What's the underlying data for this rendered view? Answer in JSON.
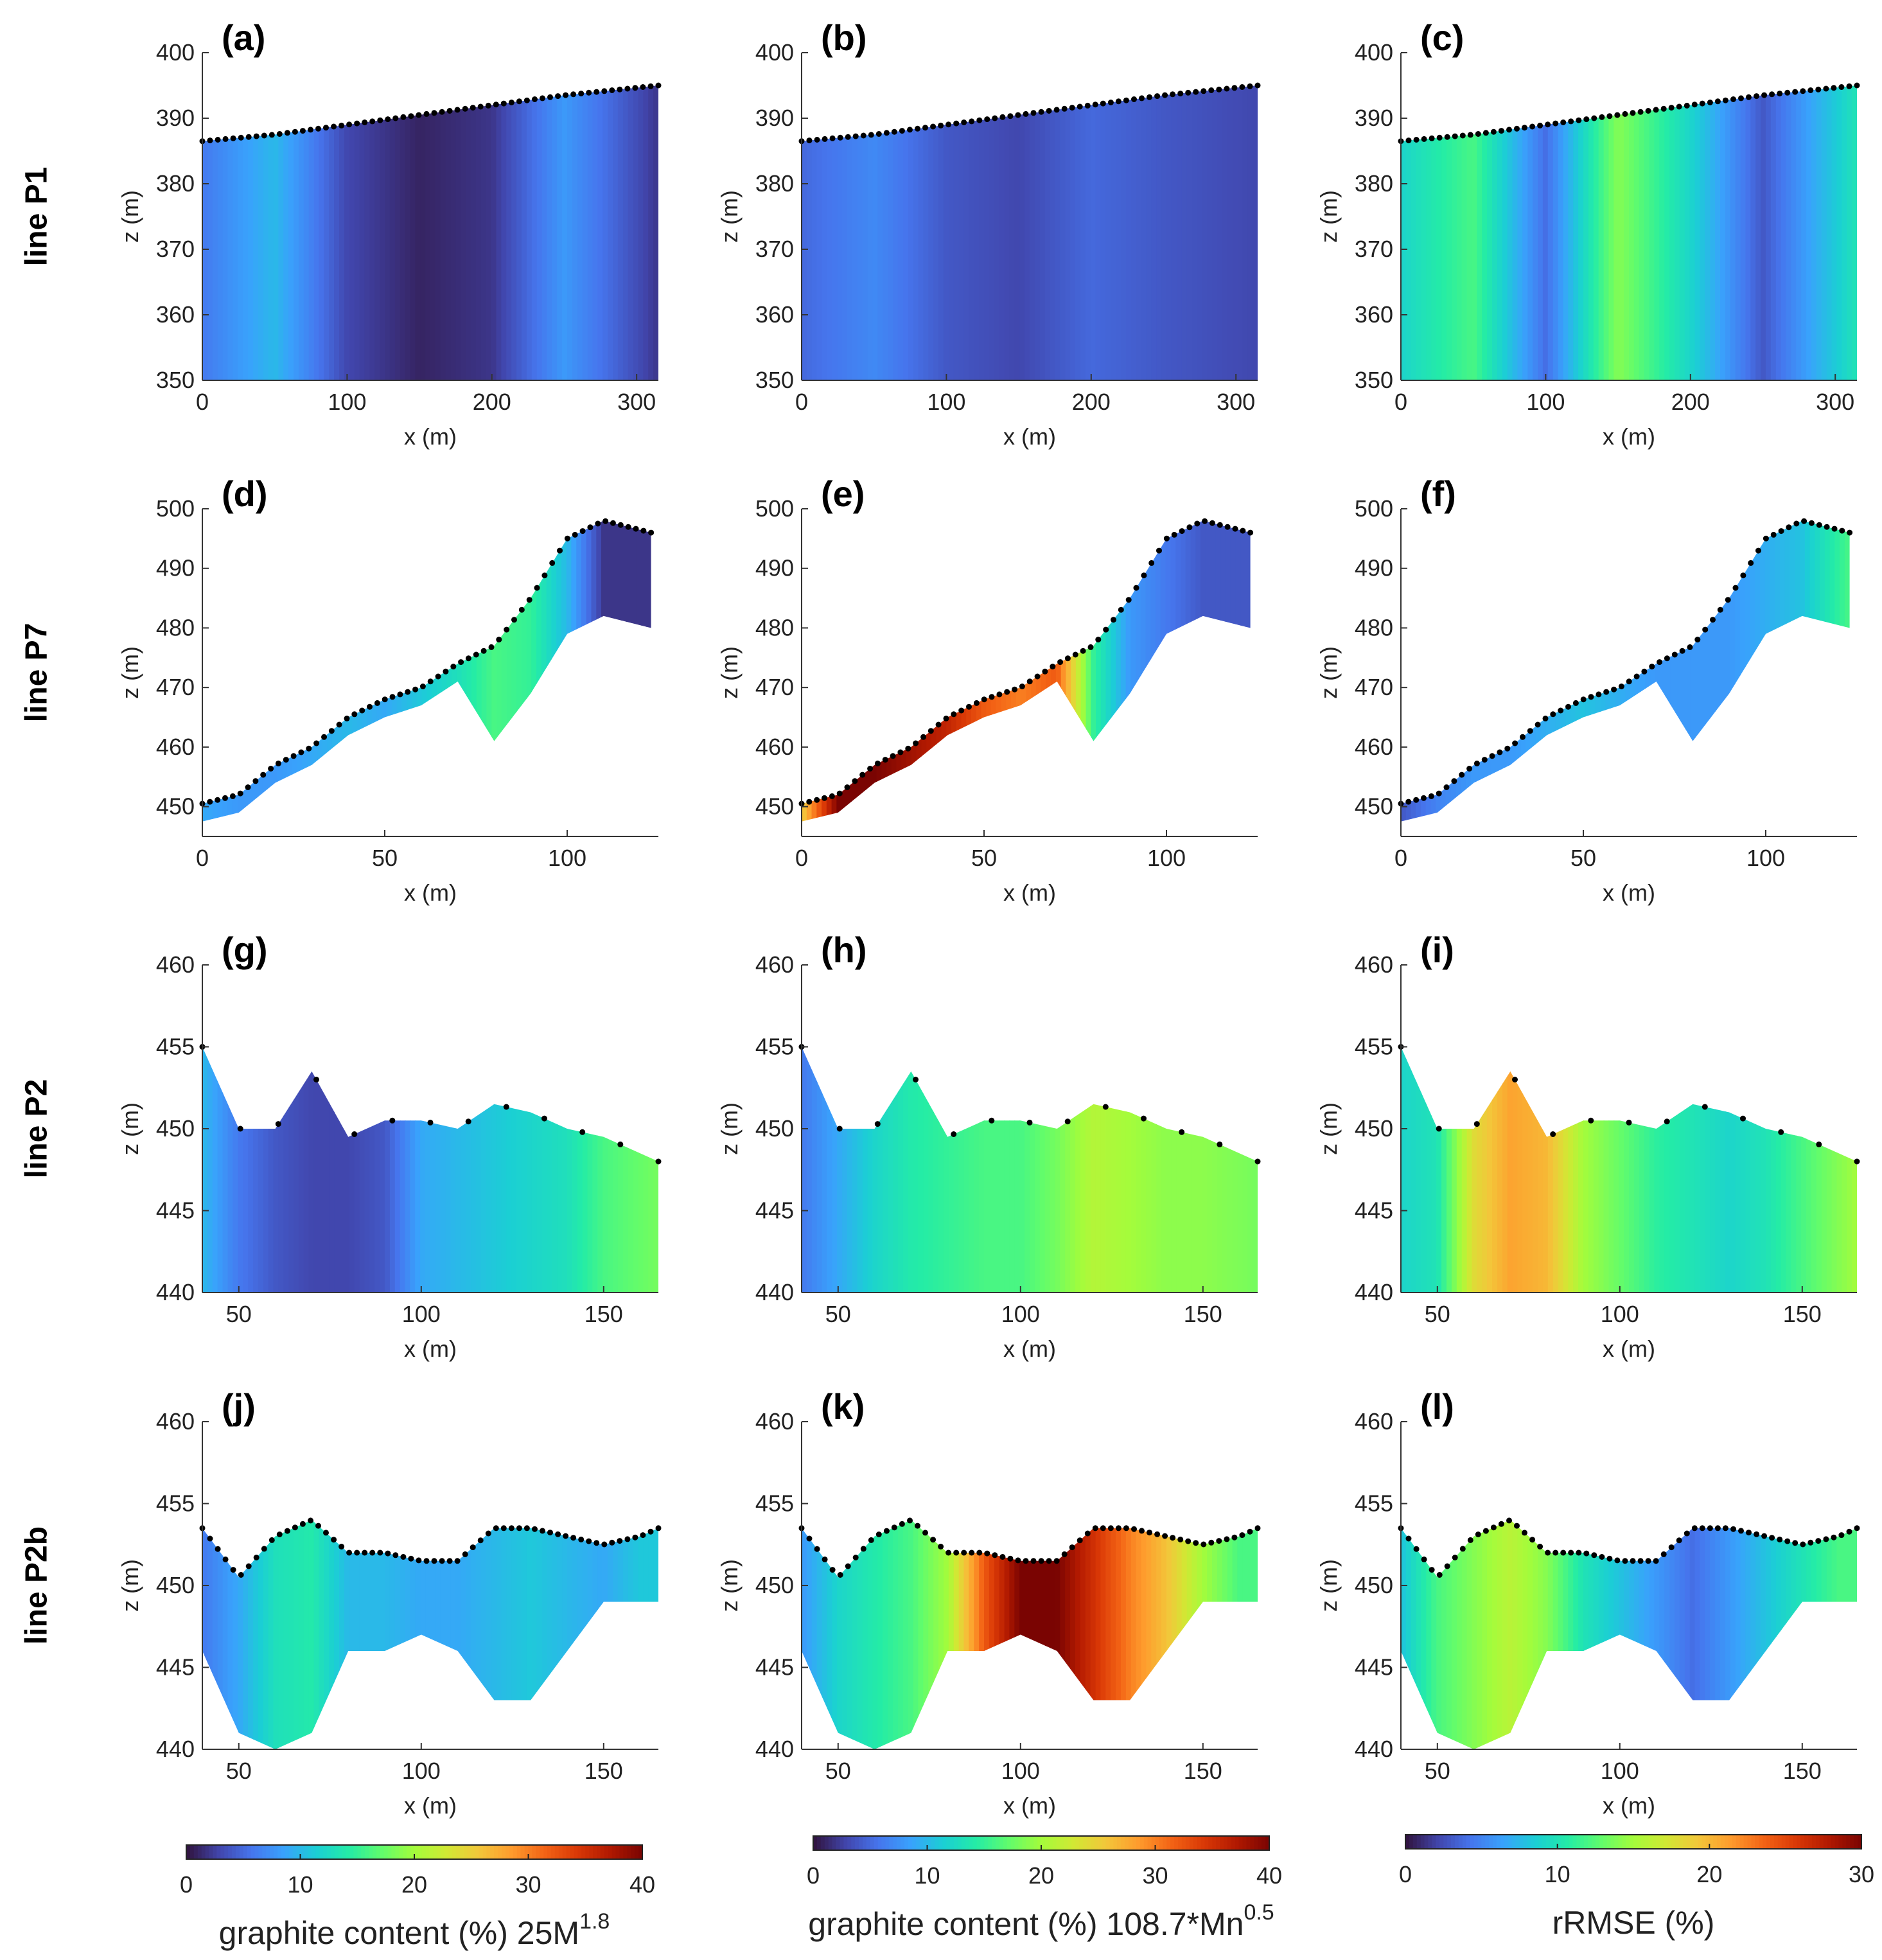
{
  "figure": {
    "rows": [
      {
        "label": "line P1",
        "panels": [
          "(a)",
          "(b)",
          "(c)"
        ],
        "xlabel": "x (m)",
        "ylabel": "z (m)",
        "xticks": [
          0,
          100,
          200,
          300
        ],
        "yticks": [
          350,
          360,
          370,
          380,
          390,
          400
        ],
        "xlim": [
          0,
          315
        ],
        "ylim": [
          350,
          400
        ]
      },
      {
        "label": "line P7",
        "panels": [
          "(d)",
          "(e)",
          "(f)"
        ],
        "xlabel": "x (m)",
        "ylabel": "z (m)",
        "xticks": [
          0,
          50,
          100
        ],
        "yticks": [
          450,
          460,
          470,
          480,
          490,
          500
        ],
        "xlim": [
          0,
          125
        ],
        "ylim": [
          445,
          500
        ]
      },
      {
        "label": "line P2",
        "panels": [
          "(g)",
          "(h)",
          "(i)"
        ],
        "xlabel": "x (m)",
        "ylabel": "z (m)",
        "xticks": [
          50,
          100,
          150
        ],
        "yticks": [
          440,
          445,
          450,
          455,
          460
        ],
        "xlim": [
          40,
          165
        ],
        "ylim": [
          440,
          460
        ]
      },
      {
        "label": "line P2b",
        "panels": [
          "(j)",
          "(k)",
          "(l)"
        ],
        "xlabel": "x (m)",
        "ylabel": "z (m)",
        "xticks": [
          50,
          100,
          150
        ],
        "yticks": [
          440,
          445,
          450,
          455,
          460
        ],
        "xlim": [
          40,
          165
        ],
        "ylim": [
          440,
          460
        ]
      }
    ],
    "colorbars": [
      {
        "ticks": [
          "0",
          "10",
          "20",
          "30",
          "40"
        ],
        "range": [
          0,
          40
        ],
        "label": "graphite content (%) 25M",
        "sup": "1.8"
      },
      {
        "ticks": [
          "0",
          "10",
          "20",
          "30",
          "40"
        ],
        "range": [
          0,
          40
        ],
        "label": "graphite content (%) 108.7*Mn",
        "sup": "0.5"
      },
      {
        "ticks": [
          "0",
          "10",
          "20",
          "30"
        ],
        "range": [
          0,
          30
        ],
        "label": "rRMSE (%)",
        "sup": ""
      }
    ],
    "colors": {
      "colormap": [
        "#30123b",
        "#4145ab",
        "#4675ed",
        "#39a2fc",
        "#1bcfd4",
        "#24eca6",
        "#61fc6c",
        "#a4fc3b",
        "#d1e834",
        "#f3c63a",
        "#fe9b2d",
        "#f36315",
        "#d93806",
        "#b11901",
        "#7a0402"
      ]
    }
  },
  "chart_data": [
    {
      "type": "heatmap",
      "panel": "(a)",
      "line": "line P1",
      "x": [
        0,
        50,
        100,
        150,
        200,
        250,
        315
      ],
      "surface_z": [
        386.5,
        387.5,
        389,
        390.5,
        392,
        393.5,
        395
      ],
      "values": [
        6,
        10,
        3,
        1,
        2,
        8,
        2
      ],
      "unit": "graphite content (%)"
    },
    {
      "type": "heatmap",
      "panel": "(b)",
      "line": "line P1",
      "x": [
        0,
        50,
        100,
        150,
        200,
        250,
        315
      ],
      "surface_z": [
        386.5,
        387.5,
        389,
        390.5,
        392,
        393.5,
        395
      ],
      "values": [
        5,
        7,
        4,
        3,
        5,
        4,
        3
      ],
      "unit": "graphite content (%)"
    },
    {
      "type": "heatmap",
      "panel": "(c)",
      "line": "line P1",
      "x": [
        0,
        50,
        100,
        150,
        200,
        250,
        315
      ],
      "surface_z": [
        386.5,
        387.5,
        389,
        390.5,
        392,
        393.5,
        395
      ],
      "values": [
        9,
        12,
        4,
        14,
        9,
        3,
        10
      ],
      "unit": "rRMSE (%)"
    },
    {
      "type": "heatmap",
      "panel": "(d)",
      "line": "line P7",
      "x": [
        0,
        10,
        20,
        30,
        40,
        50,
        60,
        70,
        80,
        90,
        100,
        110,
        123
      ],
      "surface_z": [
        450.5,
        452,
        457,
        460,
        465,
        468,
        470,
        474,
        477,
        485,
        495,
        498,
        496
      ],
      "values": [
        9,
        8,
        8,
        9,
        10,
        9,
        11,
        13,
        16,
        15,
        10,
        2,
        2
      ],
      "unit": "graphite content (%)"
    },
    {
      "type": "heatmap",
      "panel": "(e)",
      "line": "line P7",
      "x": [
        0,
        10,
        20,
        30,
        40,
        50,
        60,
        70,
        80,
        90,
        100,
        110,
        123
      ],
      "surface_z": [
        450.5,
        452,
        457,
        460,
        465,
        468,
        470,
        474,
        477,
        485,
        495,
        498,
        496
      ],
      "values": [
        25,
        40,
        40,
        38,
        36,
        32,
        30,
        32,
        15,
        8,
        6,
        4,
        4
      ],
      "unit": "graphite content (%)"
    },
    {
      "type": "heatmap",
      "panel": "(f)",
      "line": "line P7",
      "x": [
        0,
        10,
        20,
        30,
        40,
        50,
        60,
        70,
        80,
        90,
        100,
        110,
        123
      ],
      "surface_z": [
        450.5,
        452,
        457,
        460,
        465,
        468,
        470,
        474,
        477,
        485,
        495,
        498,
        496
      ],
      "values": [
        3,
        5,
        6,
        6,
        7,
        8,
        7,
        6,
        6,
        6,
        7,
        8,
        12
      ],
      "unit": "rRMSE (%)"
    },
    {
      "type": "heatmap",
      "panel": "(g)",
      "line": "line P2",
      "x": [
        40,
        50,
        60,
        70,
        80,
        90,
        100,
        110,
        120,
        130,
        140,
        150,
        165
      ],
      "surface_z": [
        455,
        450,
        450,
        453.5,
        449.5,
        450.5,
        450.5,
        450,
        451.5,
        451,
        450,
        449.5,
        448
      ],
      "values": [
        10,
        6,
        4,
        3,
        3,
        4,
        9,
        10,
        11,
        12,
        13,
        16,
        18
      ],
      "unit": "graphite content (%)"
    },
    {
      "type": "heatmap",
      "panel": "(h)",
      "line": "line P2",
      "x": [
        40,
        50,
        60,
        70,
        80,
        90,
        100,
        110,
        120,
        130,
        140,
        150,
        165
      ],
      "surface_z": [
        455,
        450,
        450,
        453.5,
        449.5,
        450.5,
        450.5,
        450,
        451.5,
        451,
        450,
        449.5,
        448
      ],
      "values": [
        6,
        9,
        12,
        14,
        15,
        16,
        16,
        18,
        21,
        20,
        19,
        19,
        18
      ],
      "unit": "graphite content (%)"
    },
    {
      "type": "heatmap",
      "panel": "(i)",
      "line": "line P2",
      "x": [
        40,
        50,
        60,
        70,
        80,
        90,
        100,
        110,
        120,
        130,
        140,
        150,
        165
      ],
      "surface_z": [
        455,
        450,
        450,
        453.5,
        449.5,
        450.5,
        450.5,
        450,
        451.5,
        451,
        450,
        449.5,
        448
      ],
      "values": [
        9,
        10,
        18,
        21,
        20,
        15,
        13,
        11,
        10,
        9,
        10,
        12,
        15
      ],
      "unit": "rRMSE (%)"
    },
    {
      "type": "heatmap",
      "panel": "(j)",
      "line": "line P2b",
      "x": [
        40,
        50,
        60,
        70,
        80,
        90,
        100,
        110,
        120,
        130,
        140,
        150,
        160,
        165
      ],
      "surface_z": [
        453.5,
        450.5,
        453,
        454,
        452,
        452,
        451.5,
        451.5,
        453.5,
        453.5,
        453,
        452.5,
        453,
        453.5
      ],
      "values": [
        6,
        9,
        13,
        14,
        10,
        10,
        9,
        9,
        10,
        11,
        10,
        9,
        11,
        11
      ],
      "unit": "graphite content (%)"
    },
    {
      "type": "heatmap",
      "panel": "(k)",
      "line": "line P2b",
      "x": [
        40,
        50,
        60,
        70,
        80,
        90,
        100,
        110,
        120,
        130,
        140,
        150,
        160,
        165
      ],
      "surface_z": [
        453.5,
        450.5,
        453,
        454,
        452,
        452,
        451.5,
        451.5,
        453.5,
        453.5,
        453,
        452.5,
        453,
        453.5
      ],
      "values": [
        8,
        12,
        14,
        16,
        20,
        32,
        40,
        40,
        35,
        30,
        26,
        20,
        16,
        16
      ],
      "unit": "graphite content (%)"
    },
    {
      "type": "heatmap",
      "panel": "(l)",
      "line": "line P2b",
      "x": [
        40,
        50,
        60,
        70,
        80,
        90,
        100,
        110,
        120,
        130,
        140,
        150,
        160,
        165
      ],
      "surface_z": [
        453.5,
        450.5,
        453,
        454,
        452,
        452,
        451.5,
        451.5,
        453.5,
        453.5,
        453,
        452.5,
        453,
        453.5
      ],
      "values": [
        8,
        12,
        14,
        16,
        14,
        10,
        8,
        6,
        4,
        6,
        8,
        10,
        12,
        12
      ],
      "unit": "rRMSE (%)"
    }
  ]
}
